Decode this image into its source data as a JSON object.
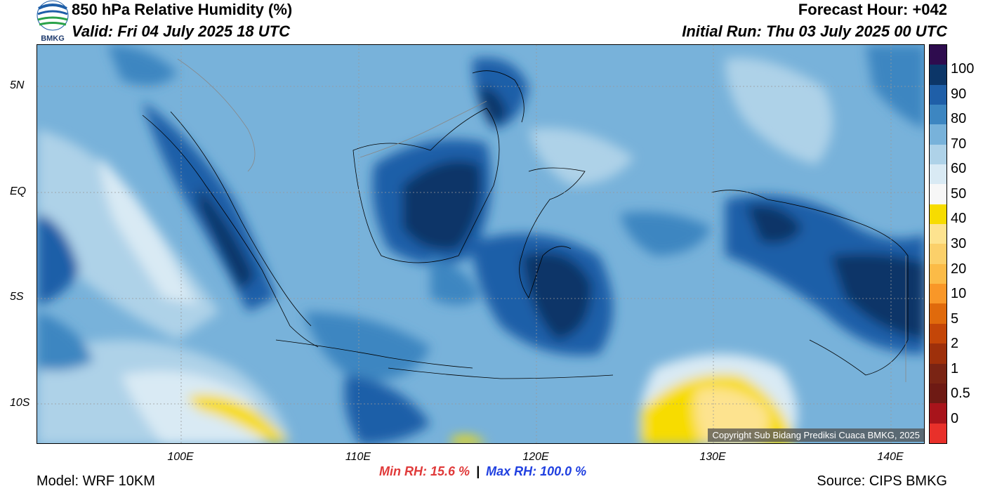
{
  "header": {
    "title": "850 hPa Relative Humidity (%)",
    "valid": "Valid: Fri 04 July 2025 18 UTC",
    "forecast_hour": "Forecast Hour: +042",
    "initial_run": "Initial Run: Thu 03 July 2025 00 UTC"
  },
  "logo": {
    "text": "BMKG"
  },
  "map": {
    "lat_labels": [
      "5N",
      "EQ",
      "5S",
      "10S"
    ],
    "lon_labels": [
      "100E",
      "110E",
      "120E",
      "130E",
      "140E"
    ],
    "copyright": "Copyright Sub Bidang Prediksi Cuaca BMKG, 2025"
  },
  "colorbar": {
    "labels": [
      "100",
      "90",
      "80",
      "70",
      "60",
      "50",
      "40",
      "30",
      "20",
      "10",
      "5",
      "2",
      "1",
      "0.5",
      "0"
    ],
    "colors": [
      "#2e0c4e",
      "#0c3668",
      "#1f5fa8",
      "#3d86c1",
      "#78b2da",
      "#aed2e8",
      "#d9eaf4",
      "#f7f7f7",
      "#f7dc00",
      "#fde38f",
      "#fbd06a",
      "#fbbb47",
      "#f99728",
      "#e06a0c",
      "#c44608",
      "#9e300b",
      "#7a2414",
      "#6e1a14",
      "#a8141b",
      "#e8302a"
    ]
  },
  "stats": {
    "min": "Min RH:  15.6 %",
    "separator": "|",
    "max": "Max RH: 100.0 %"
  },
  "footer": {
    "model": "Model: WRF 10KM",
    "source": "Source: CIPS BMKG"
  }
}
